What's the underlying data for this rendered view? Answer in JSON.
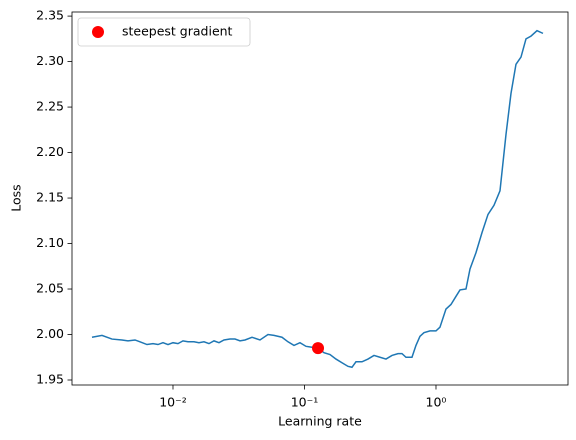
{
  "chart_data": {
    "type": "line",
    "xlabel": "Learning rate",
    "ylabel": "Loss",
    "xscale": "log",
    "xlim": [
      0.001706,
      10.09
    ],
    "ylim": [
      1.9445,
      2.3545
    ],
    "xticks": [
      {
        "value": 0.01,
        "label": "10⁻²"
      },
      {
        "value": 0.1,
        "label": "10⁻¹"
      },
      {
        "value": 1,
        "label": "10⁰"
      }
    ],
    "yticks": [
      1.95,
      {
        "value": 2,
        "label": "2.00"
      },
      2.05,
      {
        "value": 2.1,
        "label": "2.10"
      },
      2.15,
      {
        "value": 2.2,
        "label": "2.20"
      },
      2.25,
      {
        "value": 2.3,
        "label": "2.30"
      },
      2.35
    ],
    "legend": "upper left",
    "x": [
      0.002421,
      0.002885,
      0.003437,
      0.004094,
      0.004548,
      0.005141,
      0.005611,
      0.006342,
      0.007046,
      0.007689,
      0.008395,
      0.009162,
      0.01,
      0.01091,
      0.01191,
      0.013,
      0.01444,
      0.01576,
      0.0172,
      0.01878,
      0.0205,
      0.02238,
      0.02442,
      0.02713,
      0.02961,
      0.03232,
      0.03527,
      0.03989,
      0.04587,
      0.05278,
      0.05862,
      0.06744,
      0.07489,
      0.0832,
      0.09243,
      0.1027,
      0.114,
      0.1267,
      0.1407,
      0.1563,
      0.1736,
      0.1928,
      0.2142,
      0.2297,
      0.2463,
      0.2737,
      0.304,
      0.3377,
      0.3751,
      0.4167,
      0.4628,
      0.5141,
      0.5512,
      0.5912,
      0.6568,
      0.7043,
      0.7552,
      0.8101,
      0.9002,
      1.0,
      1.072,
      1.191,
      1.3,
      1.42,
      1.522,
      1.691,
      1.814,
      2.015,
      2.238,
      2.486,
      2.761,
      3.067,
      3.407,
      3.719,
      4.058,
      4.431,
      4.836,
      5.278,
      5.863,
      6.512
    ],
    "series": [
      {
        "color": "#1f77b4",
        "values": [
          1.997,
          1.999,
          1.995,
          1.994,
          1.993,
          1.994,
          1.992,
          1.989,
          1.99,
          1.989,
          1.991,
          1.989,
          1.991,
          1.99,
          1.993,
          1.992,
          1.992,
          1.991,
          1.992,
          1.99,
          1.993,
          1.991,
          1.994,
          1.995,
          1.995,
          1.993,
          1.994,
          1.997,
          1.994,
          2.0,
          1.999,
          1.997,
          1.992,
          1.988,
          1.991,
          1.987,
          1.986,
          1.985,
          1.98,
          1.978,
          1.973,
          1.969,
          1.965,
          1.964,
          1.97,
          1.97,
          1.973,
          1.977,
          1.975,
          1.973,
          1.977,
          1.979,
          1.979,
          1.975,
          1.975,
          1.988,
          1.998,
          2.002,
          2.004,
          2.004,
          2.008,
          2.028,
          2.033,
          2.042,
          2.049,
          2.05,
          2.072,
          2.09,
          2.112,
          2.132,
          2.142,
          2.158,
          2.22,
          2.265,
          2.297,
          2.305,
          2.325,
          2.328,
          2.334,
          2.331
        ]
      }
    ],
    "points": {
      "name": "steepest gradient",
      "color": "#ff0000",
      "x": [
        0.1267
      ],
      "values": [
        1.985
      ]
    }
  }
}
